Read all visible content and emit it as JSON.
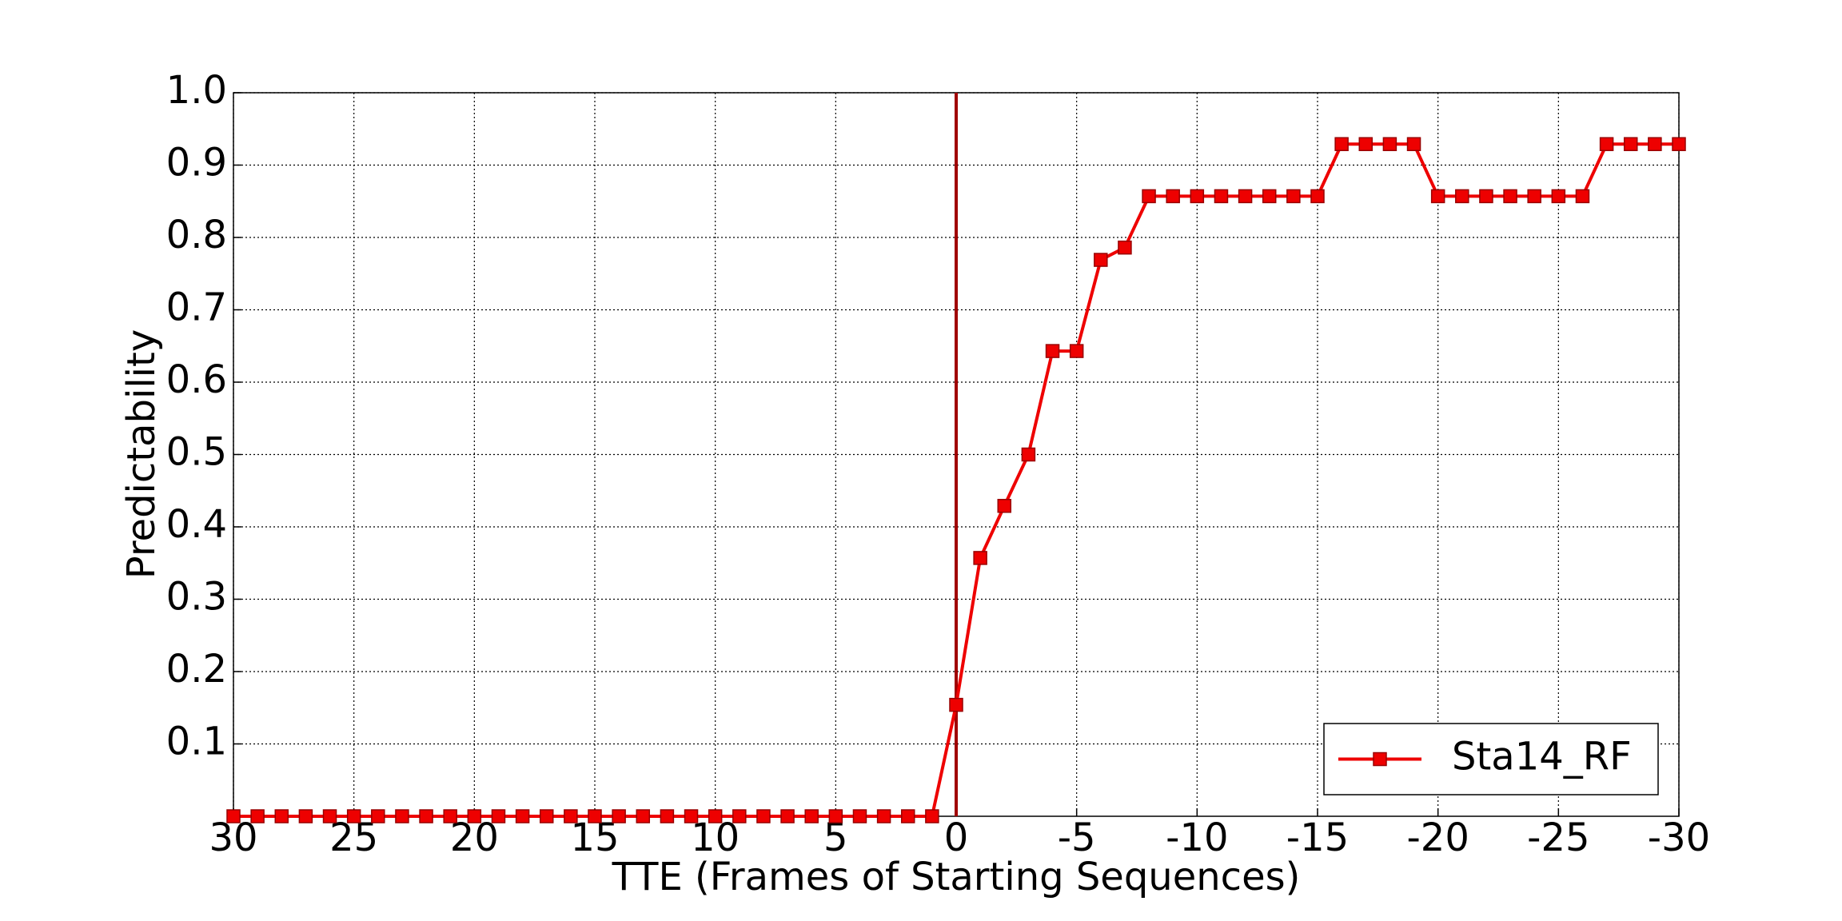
{
  "chart_data": {
    "type": "line",
    "x_label": "TTE (Frames of Starting Sequences)",
    "y_label": "Predictability",
    "x": [
      30,
      29,
      28,
      27,
      26,
      25,
      24,
      23,
      22,
      21,
      20,
      19,
      18,
      17,
      16,
      15,
      14,
      13,
      12,
      11,
      10,
      9,
      8,
      7,
      6,
      5,
      4,
      3,
      2,
      1,
      0,
      -1,
      -2,
      -3,
      -4,
      -5,
      -6,
      -7,
      -8,
      -9,
      -10,
      -11,
      -12,
      -13,
      -14,
      -15,
      -16,
      -17,
      -18,
      -19,
      -20,
      -21,
      -22,
      -23,
      -24,
      -25,
      -26,
      -27,
      -28,
      -29,
      -30
    ],
    "series": [
      {
        "name": "Sta14_RF",
        "color": "#ee0000",
        "values": [
          0,
          0,
          0,
          0,
          0,
          0,
          0,
          0,
          0,
          0,
          0,
          0,
          0,
          0,
          0,
          0,
          0,
          0,
          0,
          0,
          0,
          0,
          0,
          0,
          0,
          0,
          0,
          0,
          0,
          0,
          0.154,
          0.357,
          0.429,
          0.5,
          0.643,
          0.643,
          0.769,
          0.786,
          0.857,
          0.857,
          0.857,
          0.857,
          0.857,
          0.857,
          0.857,
          0.857,
          0.929,
          0.929,
          0.929,
          0.929,
          0.857,
          0.857,
          0.857,
          0.857,
          0.857,
          0.857,
          0.857,
          0.929,
          0.929,
          0.929,
          0.929
        ]
      }
    ],
    "xlim": [
      30,
      -30
    ],
    "xticks": [
      30,
      25,
      20,
      15,
      10,
      5,
      0,
      -5,
      -10,
      -15,
      -20,
      -25,
      -30
    ],
    "ylim": [
      0,
      1
    ],
    "yticks": [
      0.1,
      0.2,
      0.3,
      0.4,
      0.5,
      0.6,
      0.7,
      0.8,
      0.9,
      {
        "value": 1,
        "label": "1.0"
      }
    ],
    "grid": true,
    "legend": "lower right",
    "reference_line": {
      "x": 0,
      "color": "#a00000"
    }
  }
}
